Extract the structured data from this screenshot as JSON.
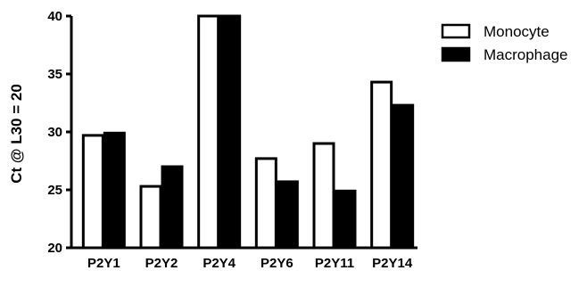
{
  "chart_data": {
    "type": "bar",
    "categories": [
      "P2Y1",
      "P2Y2",
      "P2Y4",
      "P2Y6",
      "P2Y11",
      "P2Y14"
    ],
    "series": [
      {
        "name": "Monocyte",
        "values": [
          29.7,
          25.3,
          40,
          27.7,
          29.0,
          34.3
        ],
        "fill": "#ffffff"
      },
      {
        "name": "Macrophage",
        "values": [
          29.9,
          27.0,
          40,
          25.7,
          24.9,
          32.3
        ],
        "fill": "#000000"
      }
    ],
    "ylabel": "Ct @ L30 = 20",
    "ylim": [
      20,
      40
    ],
    "yticks": [
      20,
      25,
      30,
      35,
      40
    ],
    "grid": false,
    "legend_position": "top-right"
  }
}
